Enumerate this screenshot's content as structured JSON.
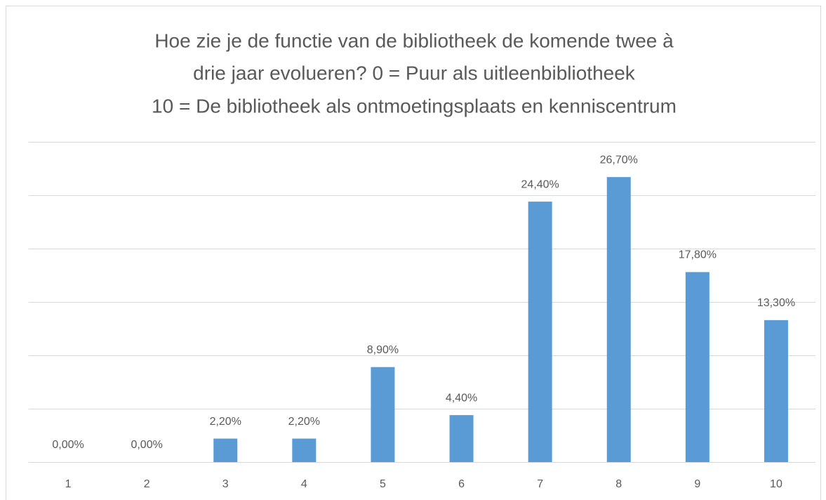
{
  "chart_data": {
    "type": "bar",
    "title": [
      "Hoe zie je de functie van de bibliotheek de komende twee à",
      "drie jaar evolueren? 0 = Puur als uitleenbibliotheek",
      "10 = De bibliotheek als ontmoetingsplaats en kenniscentrum"
    ],
    "categories": [
      "1",
      "2",
      "3",
      "4",
      "5",
      "6",
      "7",
      "8",
      "9",
      "10"
    ],
    "values": [
      0,
      0,
      2.2,
      2.2,
      8.9,
      4.4,
      24.4,
      26.7,
      17.8,
      13.3
    ],
    "value_labels": [
      "0,00%",
      "0,00%",
      "2,20%",
      "2,20%",
      "8,90%",
      "4,40%",
      "24,40%",
      "26,70%",
      "17,80%",
      "13,30%"
    ],
    "color": "#5b9bd5",
    "ylim": [
      0,
      30
    ],
    "yticks": [
      0,
      5,
      10,
      15,
      20,
      25,
      30
    ],
    "grid": true
  }
}
